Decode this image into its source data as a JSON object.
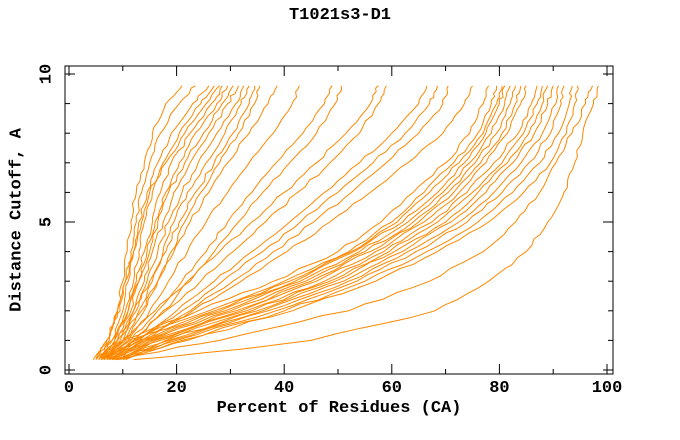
{
  "chart_data": {
    "type": "line",
    "title": "T1021s3-D1",
    "xlabel": "Percent of Residues (CA)",
    "ylabel": "Distance Cutoff, A",
    "xlim": [
      0,
      100
    ],
    "ylim": [
      0,
      10
    ],
    "x_major_ticks": [
      0,
      20,
      40,
      60,
      80,
      100
    ],
    "x_minor_ticks": [
      10,
      30,
      50,
      70,
      90
    ],
    "y_major_ticks": [
      0,
      5,
      10
    ],
    "y_minor_ticks": [
      1,
      2,
      3,
      4,
      6,
      7,
      8,
      9
    ],
    "grid": false,
    "legend": "none",
    "line_color": "#ff8800",
    "axis_color": "#000000",
    "background_color": "#ffffff",
    "cutoffs": [
      0.35,
      1,
      2,
      3,
      4,
      5,
      6,
      7,
      8,
      9,
      9.6
    ],
    "series": [
      {
        "x": [
          5,
          7.5,
          9,
          10,
          10.8,
          11.5,
          12.5,
          14,
          15.5,
          18,
          21
        ]
      },
      {
        "x": [
          4.5,
          7,
          9.5,
          10.5,
          11.5,
          12.5,
          13.5,
          15,
          17,
          20.5,
          23.5
        ]
      },
      {
        "x": [
          5.5,
          8,
          10,
          11,
          12,
          13,
          14.5,
          16.5,
          19,
          23,
          26
        ]
      },
      {
        "x": [
          5,
          7,
          9,
          10.5,
          12,
          13.5,
          15,
          17.5,
          20.5,
          24.5,
          27
        ]
      },
      {
        "x": [
          6,
          8.5,
          10.5,
          12,
          13,
          14,
          15.5,
          18,
          21.5,
          25.5,
          28
        ]
      },
      {
        "x": [
          5,
          8,
          11,
          12.5,
          14,
          15.5,
          17,
          19,
          22.5,
          26.5,
          28.5
        ]
      },
      {
        "x": [
          6.5,
          9,
          11.5,
          13,
          14.5,
          16,
          18,
          20.5,
          23.5,
          27.5,
          29.5
        ]
      },
      {
        "x": [
          5.5,
          8.5,
          11,
          13,
          15,
          16.5,
          18.5,
          21.5,
          25,
          28.5,
          30.5
        ]
      },
      {
        "x": [
          6,
          9,
          12,
          14,
          15.5,
          17.5,
          19.5,
          22.5,
          26,
          29.5,
          31.5
        ]
      },
      {
        "x": [
          6.5,
          9.5,
          12.5,
          14.5,
          16.5,
          18.5,
          21,
          24,
          27.5,
          31,
          32.5
        ]
      },
      {
        "x": [
          5.5,
          9,
          12,
          15,
          17.5,
          19.5,
          22,
          25.5,
          29,
          32,
          33.5
        ]
      },
      {
        "x": [
          7,
          10,
          13,
          15.5,
          18,
          20.5,
          23.5,
          27,
          30.5,
          33.5,
          34.5
        ]
      },
      {
        "x": [
          6,
          10.5,
          14,
          16.5,
          19,
          21.5,
          24.5,
          28,
          31.5,
          34.5,
          35.5
        ]
      },
      {
        "x": [
          6.5,
          10,
          13.5,
          16.5,
          19.5,
          22.5,
          26,
          29.5,
          33.5,
          37,
          38.7
        ]
      },
      {
        "x": [
          7,
          11,
          15,
          18.5,
          22,
          25.5,
          29.5,
          33.5,
          38,
          41.5,
          42.8
        ]
      },
      {
        "x": [
          6,
          11.5,
          16.5,
          21,
          25.5,
          29.5,
          34,
          38.5,
          43.5,
          47.5,
          48.9
        ]
      },
      {
        "x": [
          7.5,
          12,
          17.5,
          22.5,
          27,
          31.5,
          36,
          41,
          46,
          49.5,
          50.6
        ]
      },
      {
        "x": [
          6,
          10,
          16,
          22,
          28,
          34,
          40,
          46,
          51.5,
          56,
          57.5
        ]
      },
      {
        "x": [
          7,
          12,
          18,
          24.5,
          30.5,
          36.5,
          42.5,
          48.5,
          54,
          57.5,
          59
        ]
      },
      {
        "x": [
          6.5,
          12.5,
          20,
          27,
          34,
          41,
          47.5,
          54,
          60,
          65,
          66.5
        ]
      },
      {
        "x": [
          7.5,
          13,
          21,
          28.5,
          36,
          43,
          50,
          56.5,
          62.5,
          67,
          68.5
        ]
      },
      {
        "x": [
          6,
          13.5,
          22.5,
          30.5,
          38,
          45.5,
          52.5,
          59,
          65,
          69.5,
          70.5
        ]
      },
      {
        "x": [
          8,
          14,
          23,
          32,
          40.5,
          48.5,
          56,
          63,
          69.5,
          73.5,
          75
        ]
      },
      {
        "x": [
          6,
          10,
          24,
          38,
          50,
          58,
          64,
          70,
          74.5,
          77,
          78
        ]
      },
      {
        "x": [
          6.5,
          11,
          26,
          40,
          52,
          60,
          66,
          71.5,
          76,
          78.5,
          79.5
        ]
      },
      {
        "x": [
          7,
          12,
          27,
          41,
          52.5,
          61,
          67,
          72.5,
          77,
          79.5,
          80.5
        ]
      },
      {
        "x": [
          7.5,
          13,
          28,
          42,
          53,
          62,
          68.5,
          73.5,
          77.5,
          80,
          81
        ]
      },
      {
        "x": [
          8,
          14,
          29,
          43,
          54,
          63,
          69.5,
          74.5,
          78.5,
          81,
          82
        ]
      },
      {
        "x": [
          6,
          14.5,
          30,
          44,
          55,
          64,
          70.5,
          75.5,
          79.5,
          82,
          83
        ]
      },
      {
        "x": [
          8.5,
          15,
          31,
          45,
          56,
          65,
          71.5,
          76.5,
          80.5,
          83,
          84
        ]
      },
      {
        "x": [
          7,
          15.5,
          32,
          46,
          57,
          66,
          72.5,
          77.5,
          81.5,
          84,
          85
        ]
      },
      {
        "x": [
          9,
          16,
          33,
          47.5,
          58.5,
          67.5,
          74,
          79,
          83.5,
          86,
          87
        ]
      },
      {
        "x": [
          7.5,
          17,
          34,
          48.5,
          59.5,
          68.5,
          75,
          80.5,
          84.5,
          87,
          88
        ]
      },
      {
        "x": [
          9.5,
          18,
          35,
          49.5,
          60.5,
          70,
          76,
          81.5,
          85.5,
          88,
          89
        ]
      },
      {
        "x": [
          8,
          18.5,
          36,
          51,
          62,
          71,
          77.5,
          82.5,
          86.5,
          89,
          90
        ]
      },
      {
        "x": [
          10,
          19,
          37,
          52,
          63,
          72.5,
          79,
          84,
          88,
          90.5,
          91
        ]
      },
      {
        "x": [
          8.5,
          20,
          38.5,
          53.5,
          64.5,
          74,
          80.5,
          85.5,
          89.5,
          91.5,
          92
        ]
      },
      {
        "x": [
          10.5,
          21,
          40,
          55,
          66.5,
          76,
          82.5,
          87.5,
          91,
          93,
          93.5
        ]
      },
      {
        "x": [
          9,
          22,
          41.5,
          57,
          68.5,
          78,
          84.5,
          89.5,
          92.5,
          94,
          94.5
        ]
      },
      {
        "x": [
          9,
          28,
          52,
          67,
          77,
          83,
          87.5,
          90.5,
          93.5,
          96,
          97.3
        ]
      },
      {
        "x": [
          12,
          45,
          68,
          78,
          85,
          89,
          92,
          94,
          95.5,
          97.5,
          98.4
        ]
      }
    ]
  }
}
